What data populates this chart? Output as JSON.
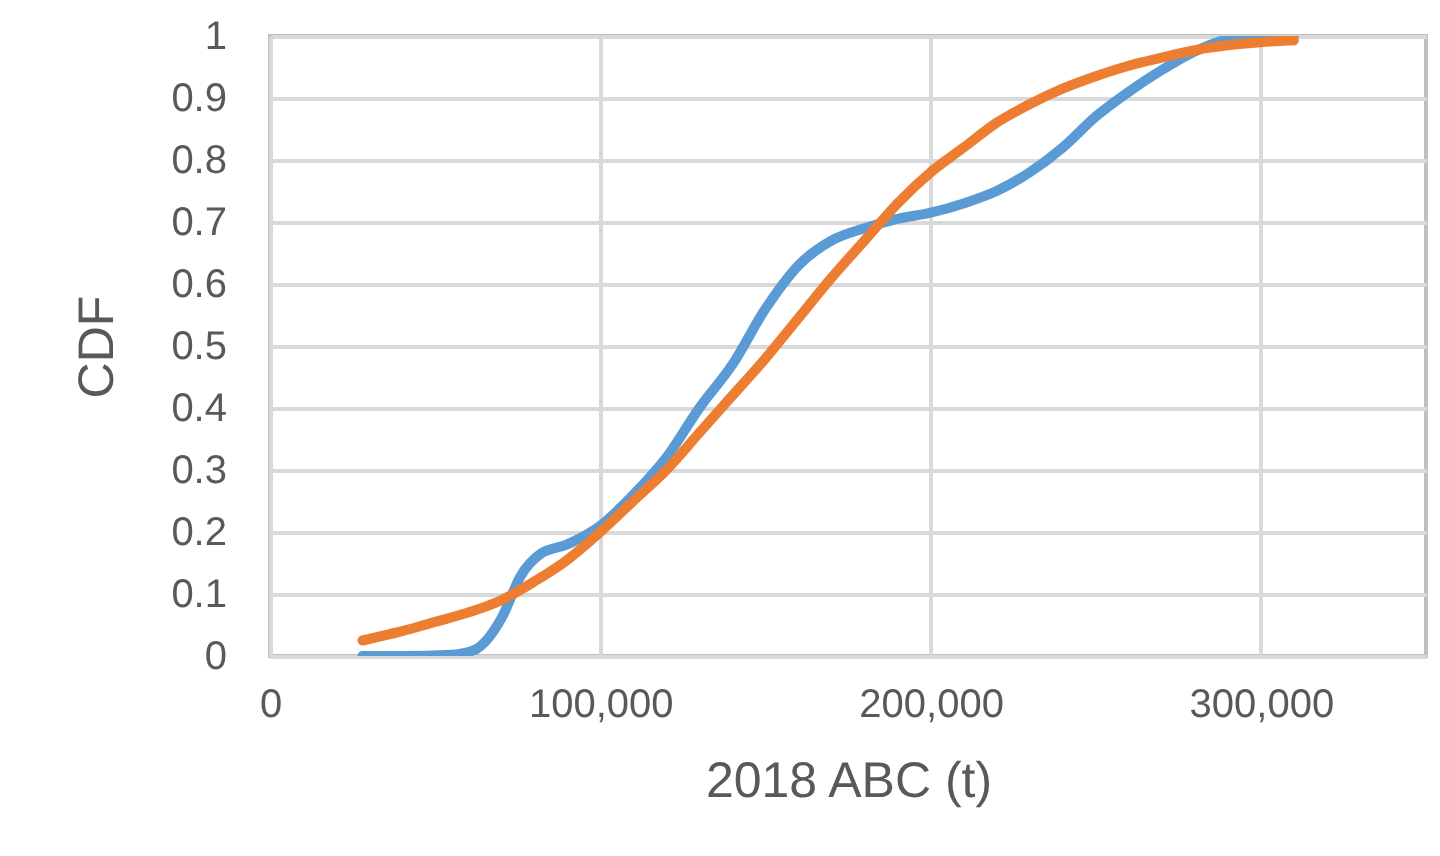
{
  "chart_data": {
    "type": "line",
    "xlabel": "2018 ABC (t)",
    "ylabel": "CDF",
    "xlim": [
      0,
      350000
    ],
    "xticks": [
      0,
      {
        "value": 100000,
        "label": "100,000"
      },
      {
        "value": 200000,
        "label": "200,000"
      },
      {
        "value": 300000,
        "label": "300,000"
      }
    ],
    "ylim": [
      0,
      1
    ],
    "yticks": [
      0,
      0.1,
      0.2,
      0.3,
      0.4,
      0.5,
      0.6,
      0.7,
      0.8,
      0.9,
      1
    ],
    "grid": true,
    "marker": "none",
    "line_style": "solid",
    "series": [
      {
        "color": "#5b9bd5",
        "x": [
          28000,
          40000,
          55000,
          62000,
          70000,
          76000,
          82000,
          90000,
          100000,
          110000,
          120000,
          130000,
          140000,
          150000,
          160000,
          170000,
          180000,
          190000,
          200000,
          210000,
          220000,
          230000,
          240000,
          250000,
          260000,
          270000,
          280000,
          290000,
          300000,
          310000
        ],
        "values": [
          0,
          0,
          0.002,
          0.01,
          0.06,
          0.13,
          0.165,
          0.18,
          0.21,
          0.26,
          0.32,
          0.4,
          0.47,
          0.56,
          0.63,
          0.67,
          0.69,
          0.705,
          0.715,
          0.73,
          0.75,
          0.78,
          0.82,
          0.87,
          0.91,
          0.945,
          0.975,
          0.995,
          1,
          1
        ]
      },
      {
        "color": "#ed7d31",
        "x": [
          28000,
          40000,
          50000,
          60000,
          70000,
          80000,
          90000,
          100000,
          110000,
          120000,
          130000,
          140000,
          150000,
          160000,
          170000,
          180000,
          190000,
          200000,
          210000,
          220000,
          230000,
          240000,
          250000,
          260000,
          270000,
          280000,
          290000,
          300000,
          310000
        ],
        "values": [
          0.025,
          0.04,
          0.055,
          0.07,
          0.09,
          0.12,
          0.155,
          0.2,
          0.25,
          0.3,
          0.36,
          0.42,
          0.48,
          0.545,
          0.61,
          0.67,
          0.73,
          0.78,
          0.82,
          0.86,
          0.89,
          0.915,
          0.935,
          0.952,
          0.965,
          0.977,
          0.985,
          0.99,
          0.993
        ]
      }
    ]
  }
}
